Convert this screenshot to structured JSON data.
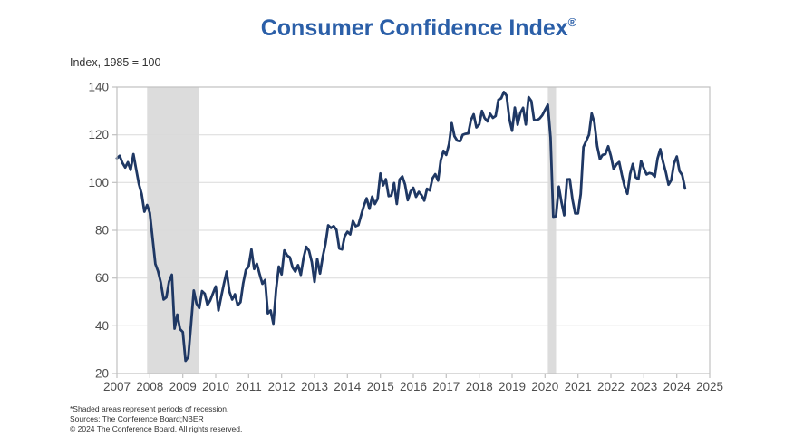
{
  "title": {
    "text": "Consumer Confidence Index",
    "reg": "®"
  },
  "subtitle": "Index, 1985 = 100",
  "footnotes": [
    "*Shaded areas represent periods of recession.",
    "Sources: The Conference Board;NBER",
    "© 2024 The Conference Board. All rights reserved."
  ],
  "colors": {
    "title_blue": "#2B5FA8",
    "line_navy": "#1F3864",
    "recession_band": "#DCDCDC",
    "gridline": "#DADADA",
    "plot_border": "#C0C0C0",
    "axis_text": "#4D4D4D"
  },
  "chart_data": {
    "type": "line",
    "title": "Consumer Confidence Index®",
    "ylabel": "Index, 1985 = 100",
    "xlabel": "",
    "ylim": [
      20,
      140
    ],
    "y_ticks": [
      20,
      40,
      60,
      80,
      100,
      120,
      140
    ],
    "x_ticks": [
      2007,
      2008,
      2009,
      2010,
      2011,
      2012,
      2013,
      2014,
      2015,
      2016,
      2017,
      2018,
      2019,
      2020,
      2021,
      2022,
      2023,
      2024,
      2025
    ],
    "xlim": [
      2007,
      2025
    ],
    "grid": "horizontal",
    "legend": "none",
    "annotations": "shaded areas mark NBER recessions",
    "recessions": [
      {
        "start": [
          2007,
          12
        ],
        "end": [
          2009,
          6
        ]
      },
      {
        "start": [
          2020,
          2
        ],
        "end": [
          2020,
          4
        ]
      }
    ],
    "series": [
      {
        "name": "Consumer Confidence Index",
        "frequency": "monthly",
        "start": [
          2007,
          1
        ],
        "values": [
          110.2,
          111.2,
          108.2,
          106.3,
          108.5,
          105.3,
          111.9,
          105.6,
          99.5,
          95.2,
          87.8,
          90.6,
          87.3,
          76.4,
          65.9,
          62.8,
          58.1,
          51.0,
          51.9,
          58.5,
          61.4,
          38.8,
          44.7,
          38.6,
          37.4,
          25.3,
          26.9,
          40.8,
          54.8,
          49.3,
          47.4,
          54.5,
          53.4,
          48.7,
          50.6,
          53.6,
          56.5,
          46.4,
          52.3,
          57.7,
          62.7,
          54.3,
          51.0,
          53.2,
          48.6,
          49.9,
          57.8,
          63.4,
          64.8,
          72.0,
          63.8,
          66.0,
          61.7,
          57.6,
          59.2,
          45.2,
          46.4,
          40.9,
          55.2,
          64.8,
          61.5,
          71.6,
          69.5,
          68.7,
          64.4,
          62.7,
          65.4,
          61.3,
          68.4,
          73.1,
          71.5,
          66.7,
          58.4,
          68.0,
          61.9,
          69.0,
          74.3,
          82.1,
          81.0,
          81.8,
          80.2,
          72.4,
          72.0,
          77.5,
          79.4,
          78.3,
          83.9,
          81.7,
          82.2,
          86.4,
          90.3,
          93.4,
          89.0,
          94.1,
          91.0,
          93.1,
          103.8,
          98.8,
          101.4,
          94.3,
          94.6,
          99.8,
          91.0,
          101.3,
          102.6,
          99.1,
          92.6,
          96.3,
          97.8,
          94.0,
          96.1,
          94.7,
          92.4,
          97.4,
          96.7,
          101.8,
          103.5,
          100.8,
          109.4,
          113.3,
          111.6,
          116.1,
          124.9,
          119.4,
          117.6,
          117.3,
          120.0,
          120.4,
          120.6,
          126.2,
          128.6,
          123.1,
          124.3,
          130.0,
          127.0,
          125.6,
          128.8,
          127.1,
          127.9,
          134.7,
          135.3,
          137.9,
          136.4,
          126.6,
          121.7,
          131.4,
          124.2,
          129.2,
          131.3,
          124.3,
          135.8,
          134.2,
          126.3,
          126.1,
          126.8,
          128.2,
          130.4,
          132.6,
          118.8,
          85.7,
          85.9,
          98.3,
          91.7,
          86.3,
          101.3,
          101.4,
          92.9,
          87.1,
          87.1,
          95.2,
          114.9,
          117.5,
          120.0,
          128.9,
          125.1,
          115.2,
          109.8,
          111.6,
          111.9,
          115.2,
          111.1,
          105.7,
          107.6,
          108.6,
          103.2,
          98.4,
          95.3,
          103.6,
          107.8,
          102.2,
          101.4,
          109.0,
          106.0,
          103.4,
          104.0,
          103.7,
          102.5,
          110.1,
          114.0,
          108.7,
          104.3,
          99.1,
          101.0,
          108.0,
          110.9,
          104.8,
          103.1,
          97.5
        ]
      }
    ]
  }
}
